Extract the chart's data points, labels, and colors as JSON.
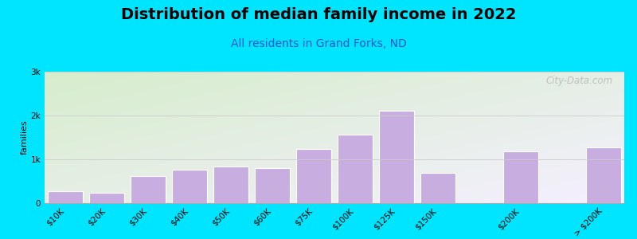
{
  "title": "Distribution of median family income in 2022",
  "subtitle": "All residents in Grand Forks, ND",
  "ylabel": "families",
  "categories": [
    "$10K",
    "$20K",
    "$30K",
    "$40K",
    "$50K",
    "$60K",
    "$75K",
    "$100K",
    "$125K",
    "$150K",
    "$200K",
    "> $200K"
  ],
  "values": [
    270,
    240,
    610,
    760,
    830,
    800,
    1230,
    1570,
    2110,
    700,
    1180,
    1280
  ],
  "bar_color": "#c8aee0",
  "bar_edge_color": "#ffffff",
  "background_fig": "#00e5ff",
  "background_ax_top_left": "#d6edcc",
  "background_ax_bottom_right": "#f5f0ff",
  "title_fontsize": 14,
  "subtitle_fontsize": 10,
  "subtitle_color": "#2255cc",
  "ylabel_fontsize": 8,
  "tick_fontsize": 7.5,
  "ylim": [
    0,
    3000
  ],
  "yticks": [
    0,
    1000,
    2000,
    3000
  ],
  "ytick_labels": [
    "0",
    "1k",
    "2k",
    "3k"
  ],
  "watermark": "City-Data.com",
  "bar_positions": [
    0,
    1,
    2,
    3,
    4,
    5,
    6,
    7,
    8,
    9,
    11,
    13
  ],
  "bar_width": 0.85
}
